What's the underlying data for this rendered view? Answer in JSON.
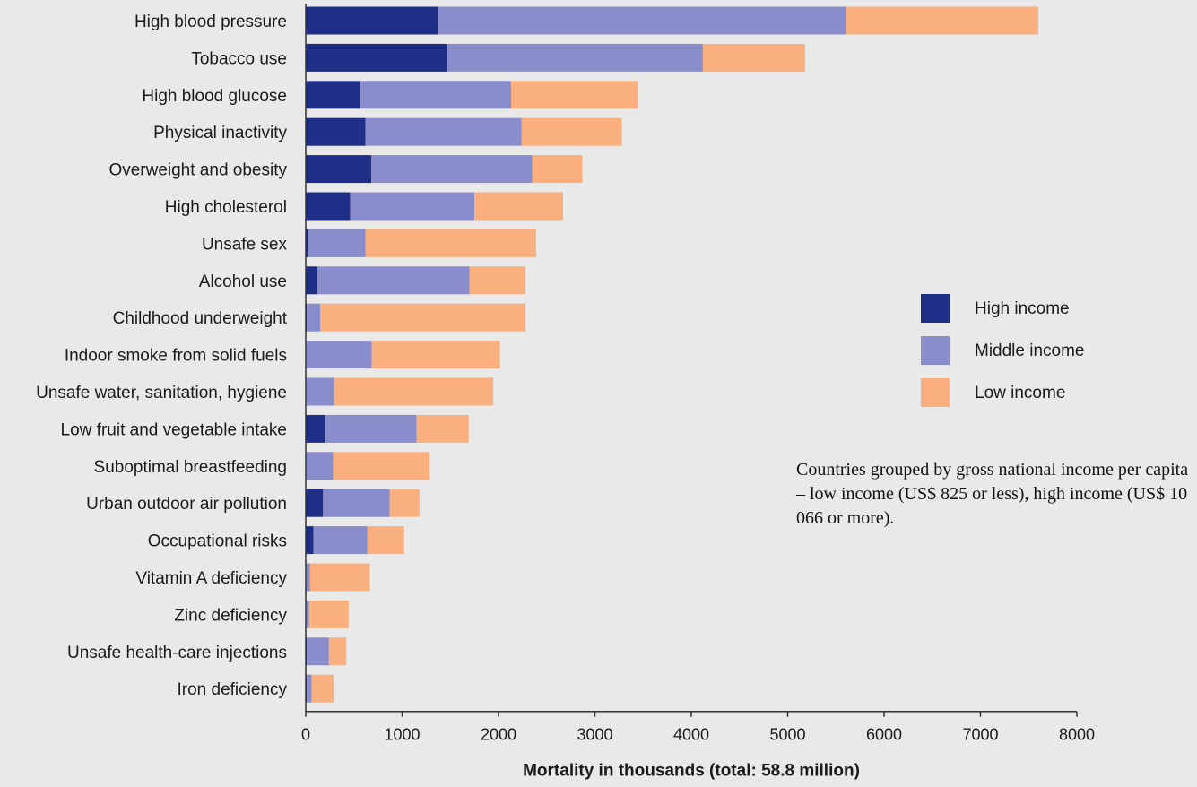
{
  "chart_data": {
    "type": "bar",
    "orientation": "horizontal",
    "stacked": true,
    "categories": [
      "High blood pressure",
      "Tobacco use",
      "High blood glucose",
      "Physical inactivity",
      "Overweight and obesity",
      "High cholesterol",
      "Unsafe sex",
      "Alcohol use",
      "Childhood underweight",
      "Indoor smoke from solid fuels",
      "Unsafe water, sanitation, hygiene",
      "Low fruit and vegetable intake",
      "Suboptimal breastfeeding",
      "Urban outdoor air pollution",
      "Occupational risks",
      "Vitamin A deficiency",
      "Zinc deficiency",
      "Unsafe health-care injections",
      "Iron deficiency"
    ],
    "series": [
      {
        "name": "High income",
        "color": "#1f2e87",
        "values": [
          1370,
          1470,
          560,
          620,
          680,
          460,
          30,
          120,
          10,
          5,
          5,
          200,
          5,
          180,
          80,
          5,
          5,
          10,
          10
        ]
      },
      {
        "name": "Middle income",
        "color": "#8a8dcb",
        "values": [
          4240,
          2650,
          1570,
          1620,
          1670,
          1290,
          590,
          1580,
          140,
          680,
          290,
          950,
          280,
          690,
          560,
          40,
          30,
          230,
          50
        ]
      },
      {
        "name": "Low income",
        "color": "#f9b07e",
        "values": [
          1990,
          1060,
          1320,
          1040,
          520,
          920,
          1770,
          580,
          2130,
          1330,
          1650,
          540,
          1000,
          310,
          380,
          620,
          410,
          180,
          230
        ]
      }
    ],
    "xlabel": "Mortality in thousands (total: 58.8 million)",
    "xlim": [
      0,
      8000
    ],
    "xticks": [
      0,
      1000,
      2000,
      3000,
      4000,
      5000,
      6000,
      7000,
      8000
    ],
    "grid": false,
    "legend_position": "right"
  },
  "note": "Countries grouped by gross national income per capita – low income (US$ 825 or less), high income (US$ 10 066 or more)."
}
